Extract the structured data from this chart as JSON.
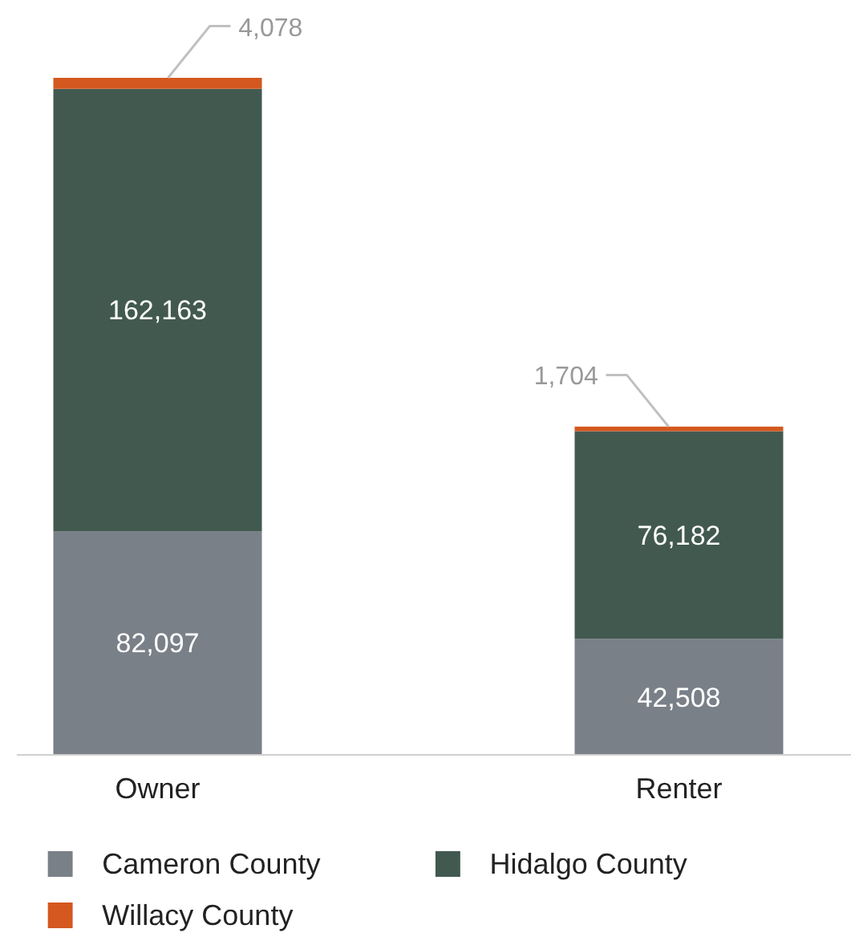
{
  "chart_data": {
    "type": "bar",
    "stacked": true,
    "categories": [
      "Owner",
      "Renter"
    ],
    "series": [
      {
        "name": "Cameron County",
        "color": "#7a8088",
        "values": [
          82097,
          42508
        ],
        "value_labels": [
          "82,097",
          "42,508"
        ]
      },
      {
        "name": "Hidalgo County",
        "color": "#425950",
        "values": [
          162163,
          76182
        ],
        "value_labels": [
          "162,163",
          "76,182"
        ]
      },
      {
        "name": "Willacy County",
        "color": "#d4581f",
        "values": [
          4078,
          1704
        ],
        "value_labels": [
          "4,078",
          "1,704"
        ]
      }
    ],
    "grid": false,
    "legend": "bottom",
    "tick_labels": "x"
  }
}
